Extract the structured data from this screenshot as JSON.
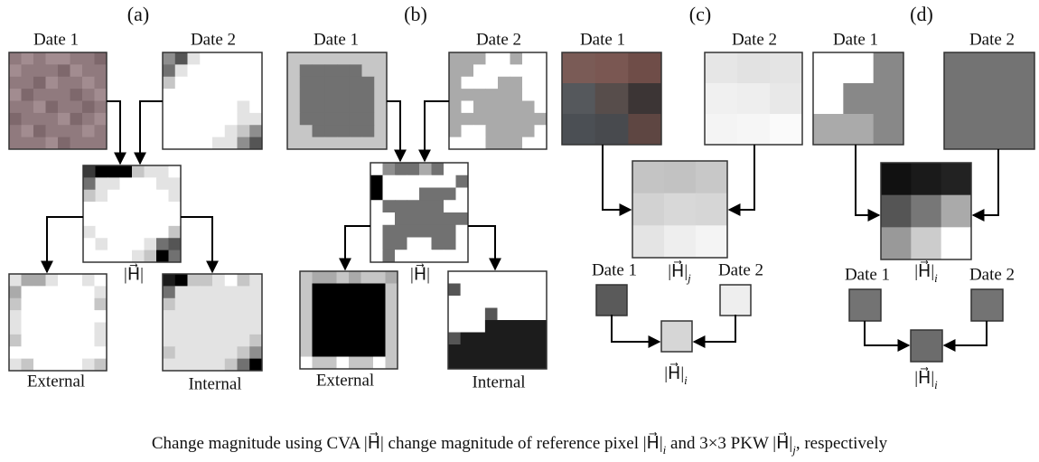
{
  "panels": [
    {
      "label": "(a)",
      "date1": "Date 1",
      "date2": "Date 2",
      "magnitude": "|H⃗|",
      "external": "External",
      "internal": "Internal"
    },
    {
      "label": "(b)",
      "date1": "Date 1",
      "date2": "Date 2",
      "magnitude": "|H⃗|",
      "external": "External",
      "internal": "Internal"
    },
    {
      "label": "(c)",
      "date1": "Date 1",
      "date2": "Date 2",
      "magnitude": {
        "text": "|H⃗|",
        "sub": "j"
      },
      "pixel_date1": "Date 1",
      "pixel_date2": "Date 2",
      "pixel_magnitude": {
        "text": "|H⃗|",
        "sub": "i"
      }
    },
    {
      "label": "(d)",
      "date1": "Date 1",
      "date2": "Date 2",
      "magnitude": {
        "text": "|H⃗|",
        "sub": "i"
      },
      "pixel_date1": "Date 1",
      "pixel_date2": "Date 2",
      "pixel_magnitude": {
        "text": "|H⃗|",
        "sub": "i"
      }
    }
  ],
  "caption": [
    {
      "text": "Change magnitude using CVA |H⃗| change magnitude of reference pixel |H⃗|",
      "sub": "i"
    },
    {
      "text": " and 3×3 PKW |H⃗|",
      "sub": "j"
    },
    {
      "text": ", respectively"
    }
  ]
}
